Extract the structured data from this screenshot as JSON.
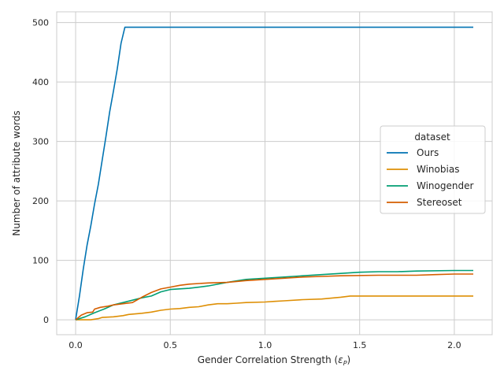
{
  "chart_data": {
    "type": "line",
    "title": "",
    "xlabel": "Gender Correlation Strength (",
    "xlabel_symbol": "ε",
    "xlabel_sub": "P",
    "xlabel_end": ")",
    "ylabel": "Number of attribute words",
    "xlim": [
      -0.1,
      2.2
    ],
    "ylim": [
      -25,
      518
    ],
    "xticks": [
      0.0,
      0.5,
      1.0,
      1.5,
      2.0
    ],
    "xtick_labels": [
      "0.0",
      "0.5",
      "1.0",
      "1.5",
      "2.0"
    ],
    "yticks": [
      0,
      100,
      200,
      300,
      400,
      500
    ],
    "ytick_labels": [
      "0",
      "100",
      "200",
      "300",
      "400",
      "500"
    ],
    "grid": true,
    "legend": {
      "title": "dataset",
      "position": "center-right"
    },
    "series": [
      {
        "name": "Ours",
        "color": "#0173b2",
        "points": [
          [
            0,
            0
          ],
          [
            0.02,
            40
          ],
          [
            0.04,
            85
          ],
          [
            0.06,
            125
          ],
          [
            0.08,
            158
          ],
          [
            0.1,
            195
          ],
          [
            0.12,
            228
          ],
          [
            0.14,
            268
          ],
          [
            0.16,
            308
          ],
          [
            0.18,
            350
          ],
          [
            0.2,
            385
          ],
          [
            0.22,
            422
          ],
          [
            0.24,
            465
          ],
          [
            0.26,
            492
          ],
          [
            2.1,
            492
          ]
        ]
      },
      {
        "name": "Winobias",
        "color": "#de8f05",
        "points": [
          [
            0,
            0
          ],
          [
            0.08,
            0
          ],
          [
            0.12,
            2
          ],
          [
            0.14,
            4
          ],
          [
            0.2,
            5
          ],
          [
            0.25,
            7
          ],
          [
            0.28,
            9
          ],
          [
            0.35,
            11
          ],
          [
            0.4,
            13
          ],
          [
            0.45,
            16
          ],
          [
            0.5,
            18
          ],
          [
            0.55,
            19
          ],
          [
            0.6,
            21
          ],
          [
            0.65,
            22
          ],
          [
            0.7,
            25
          ],
          [
            0.75,
            27
          ],
          [
            0.8,
            27
          ],
          [
            0.85,
            28
          ],
          [
            0.9,
            29
          ],
          [
            1.0,
            30
          ],
          [
            1.05,
            31
          ],
          [
            1.1,
            32
          ],
          [
            1.2,
            34
          ],
          [
            1.3,
            35
          ],
          [
            1.4,
            38
          ],
          [
            1.45,
            40
          ],
          [
            2.1,
            40
          ]
        ]
      },
      {
        "name": "Winogender",
        "color": "#029e73",
        "points": [
          [
            0,
            0
          ],
          [
            0.05,
            5
          ],
          [
            0.1,
            12
          ],
          [
            0.15,
            18
          ],
          [
            0.2,
            25
          ],
          [
            0.25,
            29
          ],
          [
            0.3,
            33
          ],
          [
            0.35,
            37
          ],
          [
            0.4,
            40
          ],
          [
            0.45,
            47
          ],
          [
            0.5,
            51
          ],
          [
            0.6,
            53
          ],
          [
            0.7,
            57
          ],
          [
            0.8,
            63
          ],
          [
            0.9,
            68
          ],
          [
            1.0,
            70
          ],
          [
            1.1,
            72
          ],
          [
            1.2,
            74
          ],
          [
            1.3,
            76
          ],
          [
            1.4,
            78
          ],
          [
            1.5,
            80
          ],
          [
            1.6,
            81
          ],
          [
            1.7,
            81
          ],
          [
            1.8,
            82
          ],
          [
            2.0,
            83
          ],
          [
            2.1,
            83
          ]
        ]
      },
      {
        "name": "Stereoset",
        "color": "#d55e00",
        "points": [
          [
            0,
            0
          ],
          [
            0.03,
            8
          ],
          [
            0.06,
            12
          ],
          [
            0.09,
            13
          ],
          [
            0.1,
            18
          ],
          [
            0.13,
            21
          ],
          [
            0.17,
            23
          ],
          [
            0.2,
            25
          ],
          [
            0.25,
            27
          ],
          [
            0.3,
            29
          ],
          [
            0.35,
            38
          ],
          [
            0.4,
            46
          ],
          [
            0.45,
            52
          ],
          [
            0.5,
            55
          ],
          [
            0.55,
            58
          ],
          [
            0.6,
            60
          ],
          [
            0.7,
            62
          ],
          [
            0.8,
            63
          ],
          [
            0.9,
            66
          ],
          [
            1.0,
            68
          ],
          [
            1.1,
            70
          ],
          [
            1.2,
            72
          ],
          [
            1.3,
            73
          ],
          [
            1.4,
            74
          ],
          [
            1.6,
            75
          ],
          [
            1.8,
            75
          ],
          [
            1.9,
            76
          ],
          [
            2.0,
            77
          ],
          [
            2.1,
            77
          ]
        ]
      }
    ]
  }
}
